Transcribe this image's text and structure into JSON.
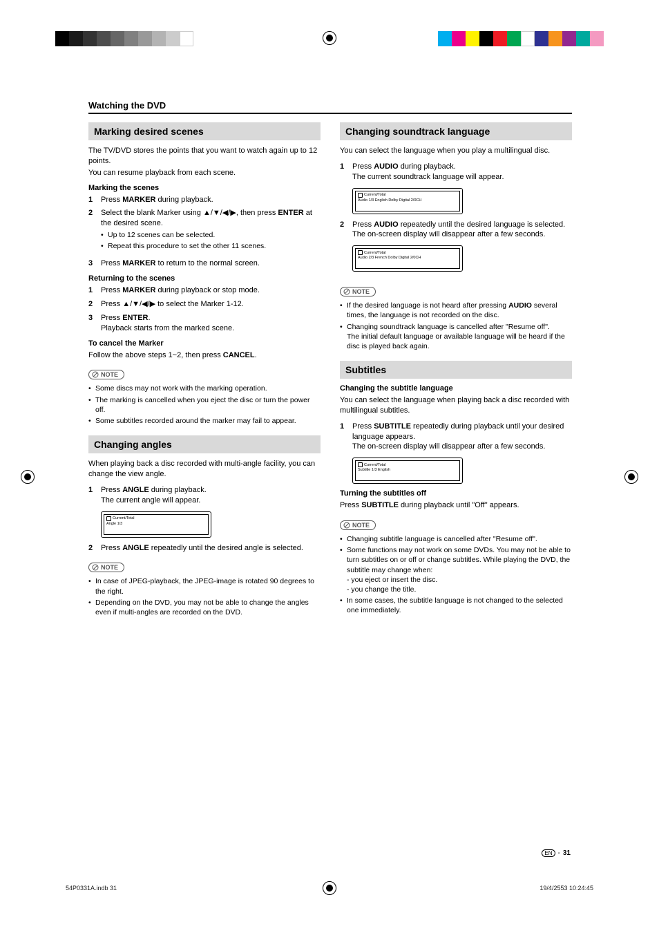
{
  "print_marks": {
    "greyscale_colors": [
      "#000000",
      "#1a1a1a",
      "#333333",
      "#4d4d4d",
      "#666666",
      "#808080",
      "#999999",
      "#b3b3b3",
      "#cccccc",
      "#ffffff"
    ],
    "rainbow_colors": [
      "#00aeef",
      "#ec008c",
      "#fff200",
      "#000000",
      "#ed1c24",
      "#00a651",
      "#ffffff",
      "#2e3192",
      "#f7941d",
      "#92278f",
      "#00a99d",
      "#f49ac1"
    ]
  },
  "section_title": "Watching the DVD",
  "left": {
    "h1": "Marking desired scenes",
    "intro1": "The TV/DVD stores the points that you want to watch again up to 12 points.",
    "intro2": "You can resume playback from each scene.",
    "marking_heading": "Marking the scenes",
    "marking_steps": [
      {
        "n": "1",
        "html": "Press <b>MARKER</b> during playback."
      },
      {
        "n": "2",
        "html": "Select the blank Marker using <span class='arrows'>▲/▼/◀/▶</span>, then press <b>ENTER</b> at the desired scene.",
        "subs": [
          "Up to 12 scenes can be selected.",
          "Repeat this procedure to set the other 11 scenes."
        ]
      },
      {
        "n": "3",
        "html": "Press <b>MARKER</b> to return to the normal screen."
      }
    ],
    "returning_heading": "Returning to the scenes",
    "returning_steps": [
      {
        "n": "1",
        "html": "Press <b>MARKER</b> during playback or stop mode."
      },
      {
        "n": "2",
        "html": "Press <span class='arrows'>▲/▼/◀/▶</span> to select the Marker 1-12."
      },
      {
        "n": "3",
        "html": "Press <b>ENTER</b>.<br>Playback starts from the marked scene."
      }
    ],
    "cancel_heading": "To cancel the Marker",
    "cancel_text": "Follow the above steps 1~2, then press <b>CANCEL</b>.",
    "note_label": "NOTE",
    "note1": [
      "Some discs may not work with the marking operation.",
      "The marking is cancelled when you eject the disc or turn the power off.",
      "Some subtitles recorded around the marker may fail to appear."
    ],
    "h2": "Changing angles",
    "angles_intro": "When playing back a disc recorded with multi-angle facility, you can change the view angle.",
    "angles_steps": [
      {
        "n": "1",
        "html": "Press <b>ANGLE</b> during playback.<br>The current angle will appear."
      },
      {
        "n": "2",
        "html": "Press <b>ANGLE</b> repeatedly until the desired angle is selected."
      }
    ],
    "osd_angle": {
      "label": "Current/Total",
      "row": "Angle   1/3"
    },
    "note2": [
      "In case of JPEG-playback, the JPEG-image is rotated 90 degrees to the right.",
      "Depending on the DVD, you may not be able to change the angles even if multi-angles are recorded on the DVD."
    ]
  },
  "right": {
    "h1": "Changing soundtrack language",
    "intro": "You can select the language when you play a multilingual disc.",
    "audio_steps1": [
      {
        "n": "1",
        "html": "Press <b>AUDIO</b> during playback.<br>The current soundtrack language will appear."
      }
    ],
    "osd_audio1": {
      "label": "Current/Total",
      "row": "Audio   1/3    English           Dolby Digital 2/0CH"
    },
    "audio_steps2": [
      {
        "n": "2",
        "html": "Press <b>AUDIO</b> repeatedly until the desired language is selected.<br>The on-screen display will disappear after a few seconds."
      }
    ],
    "osd_audio2": {
      "label": "Current/Total",
      "row": "Audio   2/3    French           Dolby Digital 2/0CH"
    },
    "note_label": "NOTE",
    "note1": [
      "If the desired language is not heard after pressing <b>AUDIO</b> several times, the language is not recorded on the disc.",
      "Changing soundtrack language is cancelled after \"Resume off\".<br>The initial default language or available language will be heard if the disc is played back again."
    ],
    "h2": "Subtitles",
    "sub_heading1": "Changing the subtitle language",
    "sub_intro": "You can select the language when playing back a disc recorded with multilingual subtitles.",
    "sub_steps": [
      {
        "n": "1",
        "html": "Press <b>SUBTITLE</b> repeatedly during playback until your desired language appears.<br>The on-screen display will disappear after a few seconds."
      }
    ],
    "osd_subtitle": {
      "label": "Current/Total",
      "row": "Subtitle  1/3    English"
    },
    "sub_heading2": "Turning the subtitles off",
    "sub_off_text": "Press <b>SUBTITLE</b> during playback until \"Off\" appears.",
    "note2": [
      "Changing subtitle language is cancelled after \"Resume off\".",
      "Some functions may not work on some DVDs. You may not be able to turn subtitles on or off or change subtitles. While playing the DVD, the subtitle may change when:<br>- you eject or insert the disc.<br>- you change the title.",
      "In some cases, the subtitle language is not changed to the selected one immediately."
    ]
  },
  "footer": {
    "en_label": "EN",
    "page_sep": "-",
    "page_num": "31",
    "file": "54P0331A.indb   31",
    "timestamp": "19/4/2553   10:24:45"
  }
}
